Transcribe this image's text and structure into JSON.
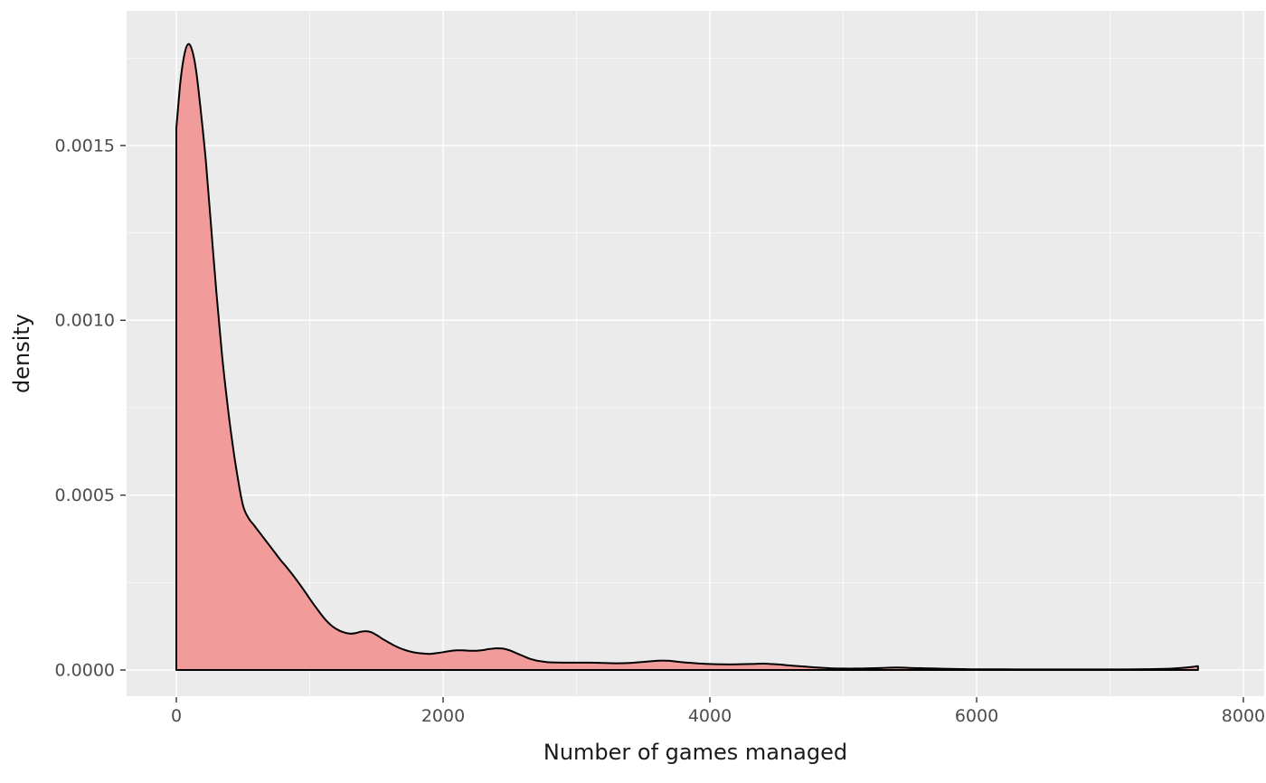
{
  "chart_data": {
    "type": "area",
    "subtype": "density-curve",
    "title": "",
    "xlabel": "Number of games managed",
    "ylabel": "density",
    "xlim": [
      -373,
      8156
    ],
    "ylim": [
      -7.5e-05,
      0.001885
    ],
    "x_ticks": [
      0,
      2000,
      4000,
      6000,
      8000
    ],
    "x_tick_labels": [
      "0",
      "2000",
      "4000",
      "6000",
      "8000"
    ],
    "x_minor_ticks": [
      1000,
      3000,
      5000,
      7000
    ],
    "y_ticks": [
      0,
      0.0005,
      0.001,
      0.0015
    ],
    "y_tick_labels": [
      "0.0000",
      "0.0005",
      "0.0010",
      "0.0015"
    ],
    "y_minor_ticks": [
      0.00025,
      0.00075,
      0.00125,
      0.00175
    ],
    "grid": true,
    "legend_position": "none",
    "series": [
      {
        "name": "density",
        "points": [
          [
            0,
            0.00155
          ],
          [
            30,
            0.00168
          ],
          [
            60,
            0.00176
          ],
          [
            90,
            0.00179
          ],
          [
            120,
            0.00177
          ],
          [
            150,
            0.00171
          ],
          [
            180,
            0.00161
          ],
          [
            220,
            0.00146
          ],
          [
            260,
            0.00127
          ],
          [
            300,
            0.00108
          ],
          [
            340,
            0.00091
          ],
          [
            380,
            0.00077
          ],
          [
            420,
            0.00065
          ],
          [
            460,
            0.00055
          ],
          [
            500,
            0.00047
          ],
          [
            540,
            0.000435
          ],
          [
            580,
            0.000415
          ],
          [
            620,
            0.000395
          ],
          [
            660,
            0.000375
          ],
          [
            700,
            0.000355
          ],
          [
            740,
            0.000335
          ],
          [
            780,
            0.000315
          ],
          [
            820,
            0.000297
          ],
          [
            860,
            0.000278
          ],
          [
            900,
            0.000258
          ],
          [
            940,
            0.000237
          ],
          [
            980,
            0.000215
          ],
          [
            1020,
            0.000193
          ],
          [
            1060,
            0.000172
          ],
          [
            1100,
            0.000152
          ],
          [
            1140,
            0.000135
          ],
          [
            1180,
            0.000122
          ],
          [
            1220,
            0.000113
          ],
          [
            1260,
            0.000107
          ],
          [
            1300,
            0.000104
          ],
          [
            1340,
            0.000105
          ],
          [
            1380,
            0.000109
          ],
          [
            1420,
            0.000111
          ],
          [
            1460,
            0.000108
          ],
          [
            1500,
            0.0001
          ],
          [
            1550,
            8.8e-05
          ],
          [
            1600,
            7.7e-05
          ],
          [
            1650,
            6.7e-05
          ],
          [
            1700,
            5.9e-05
          ],
          [
            1750,
            5.3e-05
          ],
          [
            1800,
            4.9e-05
          ],
          [
            1850,
            4.7e-05
          ],
          [
            1900,
            4.6e-05
          ],
          [
            1950,
            4.8e-05
          ],
          [
            2000,
            5.1e-05
          ],
          [
            2050,
            5.4e-05
          ],
          [
            2100,
            5.6e-05
          ],
          [
            2150,
            5.6e-05
          ],
          [
            2200,
            5.5e-05
          ],
          [
            2250,
            5.5e-05
          ],
          [
            2300,
            5.7e-05
          ],
          [
            2350,
            6e-05
          ],
          [
            2400,
            6.2e-05
          ],
          [
            2450,
            6.1e-05
          ],
          [
            2500,
            5.6e-05
          ],
          [
            2550,
            4.8e-05
          ],
          [
            2600,
            4e-05
          ],
          [
            2650,
            3.2e-05
          ],
          [
            2700,
            2.7e-05
          ],
          [
            2750,
            2.4e-05
          ],
          [
            2800,
            2.2e-05
          ],
          [
            2900,
            2.1e-05
          ],
          [
            3000,
            2.1e-05
          ],
          [
            3100,
            2.1e-05
          ],
          [
            3200,
            2e-05
          ],
          [
            3300,
            1.9e-05
          ],
          [
            3400,
            2e-05
          ],
          [
            3500,
            2.3e-05
          ],
          [
            3600,
            2.6e-05
          ],
          [
            3650,
            2.7e-05
          ],
          [
            3700,
            2.6e-05
          ],
          [
            3800,
            2.2e-05
          ],
          [
            3900,
            1.9e-05
          ],
          [
            4000,
            1.7e-05
          ],
          [
            4100,
            1.6e-05
          ],
          [
            4200,
            1.6e-05
          ],
          [
            4300,
            1.7e-05
          ],
          [
            4400,
            1.8e-05
          ],
          [
            4500,
            1.6e-05
          ],
          [
            4600,
            1.3e-05
          ],
          [
            4700,
            1e-05
          ],
          [
            4800,
            7e-06
          ],
          [
            4900,
            5e-06
          ],
          [
            5000,
            4e-06
          ],
          [
            5100,
            4e-06
          ],
          [
            5200,
            5e-06
          ],
          [
            5300,
            6e-06
          ],
          [
            5400,
            7e-06
          ],
          [
            5500,
            6e-06
          ],
          [
            5600,
            5e-06
          ],
          [
            5700,
            4e-06
          ],
          [
            5800,
            3e-06
          ],
          [
            5900,
            2.5e-06
          ],
          [
            6000,
            2e-06
          ],
          [
            6200,
            1.8e-06
          ],
          [
            6400,
            1.6e-06
          ],
          [
            6600,
            1.5e-06
          ],
          [
            6800,
            1.5e-06
          ],
          [
            7000,
            1.6e-06
          ],
          [
            7200,
            1.8e-06
          ],
          [
            7400,
            3e-06
          ],
          [
            7500,
            5e-06
          ],
          [
            7600,
            8e-06
          ],
          [
            7660,
            1.1e-05
          ]
        ]
      }
    ],
    "colors": {
      "fill": "#F29B9B",
      "line": "#000000",
      "panel_bg": "#EBEBEB",
      "grid_major": "#FFFFFF",
      "grid_minor": "#FFFFFF",
      "tick_mark": "#333333",
      "tick_text": "#4D4D4D",
      "axis_title_text": "#1A1A1A"
    }
  }
}
